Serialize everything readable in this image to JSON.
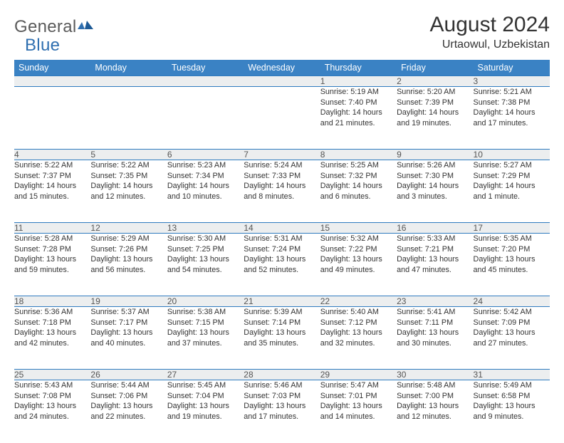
{
  "brand": {
    "name_a": "General",
    "name_b": "Blue"
  },
  "title": "August 2024",
  "location": "Urtaowul, Uzbekistan",
  "colors": {
    "header_bg": "#3a82c4",
    "header_text": "#ffffff",
    "daynum_bg": "#eceeef",
    "border": "#2f7bbf",
    "text": "#333333",
    "logo_gray": "#5a5a5a",
    "logo_blue": "#2f6fb0"
  },
  "days_of_week": [
    "Sunday",
    "Monday",
    "Tuesday",
    "Wednesday",
    "Thursday",
    "Friday",
    "Saturday"
  ],
  "weeks": [
    {
      "nums": [
        "",
        "",
        "",
        "",
        "1",
        "2",
        "3"
      ],
      "cells": [
        null,
        null,
        null,
        null,
        {
          "sunrise": "Sunrise: 5:19 AM",
          "sunset": "Sunset: 7:40 PM",
          "day1": "Daylight: 14 hours",
          "day2": "and 21 minutes."
        },
        {
          "sunrise": "Sunrise: 5:20 AM",
          "sunset": "Sunset: 7:39 PM",
          "day1": "Daylight: 14 hours",
          "day2": "and 19 minutes."
        },
        {
          "sunrise": "Sunrise: 5:21 AM",
          "sunset": "Sunset: 7:38 PM",
          "day1": "Daylight: 14 hours",
          "day2": "and 17 minutes."
        }
      ]
    },
    {
      "nums": [
        "4",
        "5",
        "6",
        "7",
        "8",
        "9",
        "10"
      ],
      "cells": [
        {
          "sunrise": "Sunrise: 5:22 AM",
          "sunset": "Sunset: 7:37 PM",
          "day1": "Daylight: 14 hours",
          "day2": "and 15 minutes."
        },
        {
          "sunrise": "Sunrise: 5:22 AM",
          "sunset": "Sunset: 7:35 PM",
          "day1": "Daylight: 14 hours",
          "day2": "and 12 minutes."
        },
        {
          "sunrise": "Sunrise: 5:23 AM",
          "sunset": "Sunset: 7:34 PM",
          "day1": "Daylight: 14 hours",
          "day2": "and 10 minutes."
        },
        {
          "sunrise": "Sunrise: 5:24 AM",
          "sunset": "Sunset: 7:33 PM",
          "day1": "Daylight: 14 hours",
          "day2": "and 8 minutes."
        },
        {
          "sunrise": "Sunrise: 5:25 AM",
          "sunset": "Sunset: 7:32 PM",
          "day1": "Daylight: 14 hours",
          "day2": "and 6 minutes."
        },
        {
          "sunrise": "Sunrise: 5:26 AM",
          "sunset": "Sunset: 7:30 PM",
          "day1": "Daylight: 14 hours",
          "day2": "and 3 minutes."
        },
        {
          "sunrise": "Sunrise: 5:27 AM",
          "sunset": "Sunset: 7:29 PM",
          "day1": "Daylight: 14 hours",
          "day2": "and 1 minute."
        }
      ]
    },
    {
      "nums": [
        "11",
        "12",
        "13",
        "14",
        "15",
        "16",
        "17"
      ],
      "cells": [
        {
          "sunrise": "Sunrise: 5:28 AM",
          "sunset": "Sunset: 7:28 PM",
          "day1": "Daylight: 13 hours",
          "day2": "and 59 minutes."
        },
        {
          "sunrise": "Sunrise: 5:29 AM",
          "sunset": "Sunset: 7:26 PM",
          "day1": "Daylight: 13 hours",
          "day2": "and 56 minutes."
        },
        {
          "sunrise": "Sunrise: 5:30 AM",
          "sunset": "Sunset: 7:25 PM",
          "day1": "Daylight: 13 hours",
          "day2": "and 54 minutes."
        },
        {
          "sunrise": "Sunrise: 5:31 AM",
          "sunset": "Sunset: 7:24 PM",
          "day1": "Daylight: 13 hours",
          "day2": "and 52 minutes."
        },
        {
          "sunrise": "Sunrise: 5:32 AM",
          "sunset": "Sunset: 7:22 PM",
          "day1": "Daylight: 13 hours",
          "day2": "and 49 minutes."
        },
        {
          "sunrise": "Sunrise: 5:33 AM",
          "sunset": "Sunset: 7:21 PM",
          "day1": "Daylight: 13 hours",
          "day2": "and 47 minutes."
        },
        {
          "sunrise": "Sunrise: 5:35 AM",
          "sunset": "Sunset: 7:20 PM",
          "day1": "Daylight: 13 hours",
          "day2": "and 45 minutes."
        }
      ]
    },
    {
      "nums": [
        "18",
        "19",
        "20",
        "21",
        "22",
        "23",
        "24"
      ],
      "cells": [
        {
          "sunrise": "Sunrise: 5:36 AM",
          "sunset": "Sunset: 7:18 PM",
          "day1": "Daylight: 13 hours",
          "day2": "and 42 minutes."
        },
        {
          "sunrise": "Sunrise: 5:37 AM",
          "sunset": "Sunset: 7:17 PM",
          "day1": "Daylight: 13 hours",
          "day2": "and 40 minutes."
        },
        {
          "sunrise": "Sunrise: 5:38 AM",
          "sunset": "Sunset: 7:15 PM",
          "day1": "Daylight: 13 hours",
          "day2": "and 37 minutes."
        },
        {
          "sunrise": "Sunrise: 5:39 AM",
          "sunset": "Sunset: 7:14 PM",
          "day1": "Daylight: 13 hours",
          "day2": "and 35 minutes."
        },
        {
          "sunrise": "Sunrise: 5:40 AM",
          "sunset": "Sunset: 7:12 PM",
          "day1": "Daylight: 13 hours",
          "day2": "and 32 minutes."
        },
        {
          "sunrise": "Sunrise: 5:41 AM",
          "sunset": "Sunset: 7:11 PM",
          "day1": "Daylight: 13 hours",
          "day2": "and 30 minutes."
        },
        {
          "sunrise": "Sunrise: 5:42 AM",
          "sunset": "Sunset: 7:09 PM",
          "day1": "Daylight: 13 hours",
          "day2": "and 27 minutes."
        }
      ]
    },
    {
      "nums": [
        "25",
        "26",
        "27",
        "28",
        "29",
        "30",
        "31"
      ],
      "cells": [
        {
          "sunrise": "Sunrise: 5:43 AM",
          "sunset": "Sunset: 7:08 PM",
          "day1": "Daylight: 13 hours",
          "day2": "and 24 minutes."
        },
        {
          "sunrise": "Sunrise: 5:44 AM",
          "sunset": "Sunset: 7:06 PM",
          "day1": "Daylight: 13 hours",
          "day2": "and 22 minutes."
        },
        {
          "sunrise": "Sunrise: 5:45 AM",
          "sunset": "Sunset: 7:04 PM",
          "day1": "Daylight: 13 hours",
          "day2": "and 19 minutes."
        },
        {
          "sunrise": "Sunrise: 5:46 AM",
          "sunset": "Sunset: 7:03 PM",
          "day1": "Daylight: 13 hours",
          "day2": "and 17 minutes."
        },
        {
          "sunrise": "Sunrise: 5:47 AM",
          "sunset": "Sunset: 7:01 PM",
          "day1": "Daylight: 13 hours",
          "day2": "and 14 minutes."
        },
        {
          "sunrise": "Sunrise: 5:48 AM",
          "sunset": "Sunset: 7:00 PM",
          "day1": "Daylight: 13 hours",
          "day2": "and 12 minutes."
        },
        {
          "sunrise": "Sunrise: 5:49 AM",
          "sunset": "Sunset: 6:58 PM",
          "day1": "Daylight: 13 hours",
          "day2": "and 9 minutes."
        }
      ]
    }
  ]
}
